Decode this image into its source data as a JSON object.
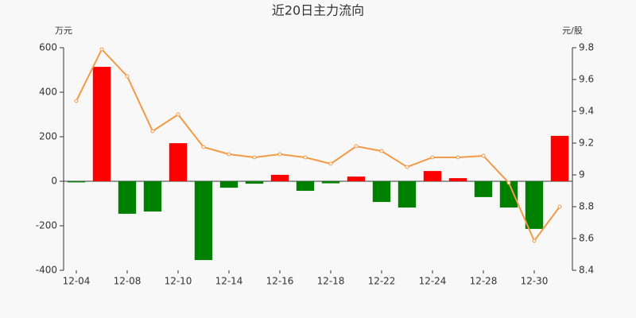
{
  "chart_data": {
    "type": "bar",
    "title": "近20日主力流向",
    "y_label": "万元",
    "y2_label": "元/股",
    "categories": [
      "12-04",
      null,
      "12-08",
      null,
      "12-10",
      null,
      "12-14",
      null,
      "12-16",
      null,
      "12-18",
      null,
      "12-22",
      null,
      "12-24",
      null,
      "12-28",
      null,
      "12-30",
      null
    ],
    "series": [
      {
        "type": "bar",
        "color": "#ff0000",
        "negative_color": "#008000",
        "values": [
          -5,
          514,
          -146,
          -136,
          171,
          -354,
          -29,
          -11,
          29,
          -43,
          -9,
          21,
          -93,
          -118,
          46,
          14,
          -71,
          -118,
          -214,
          204
        ]
      },
      {
        "type": "line",
        "axis": "y2",
        "color": "#f39a46",
        "values": [
          9.465,
          9.79,
          9.62,
          9.275,
          9.38,
          9.175,
          9.13,
          9.11,
          9.13,
          9.11,
          9.07,
          9.18,
          9.15,
          9.05,
          9.11,
          9.11,
          9.12,
          8.95,
          8.585,
          8.8
        ]
      }
    ],
    "ylim": [
      -400,
      600
    ],
    "yticks": [
      -400,
      -200,
      0,
      200,
      400,
      600
    ],
    "y2lim": [
      8.4,
      9.8
    ],
    "y2ticks": [
      8.4,
      8.6,
      8.8,
      9,
      9.2,
      9.4,
      9.6,
      9.8
    ]
  }
}
